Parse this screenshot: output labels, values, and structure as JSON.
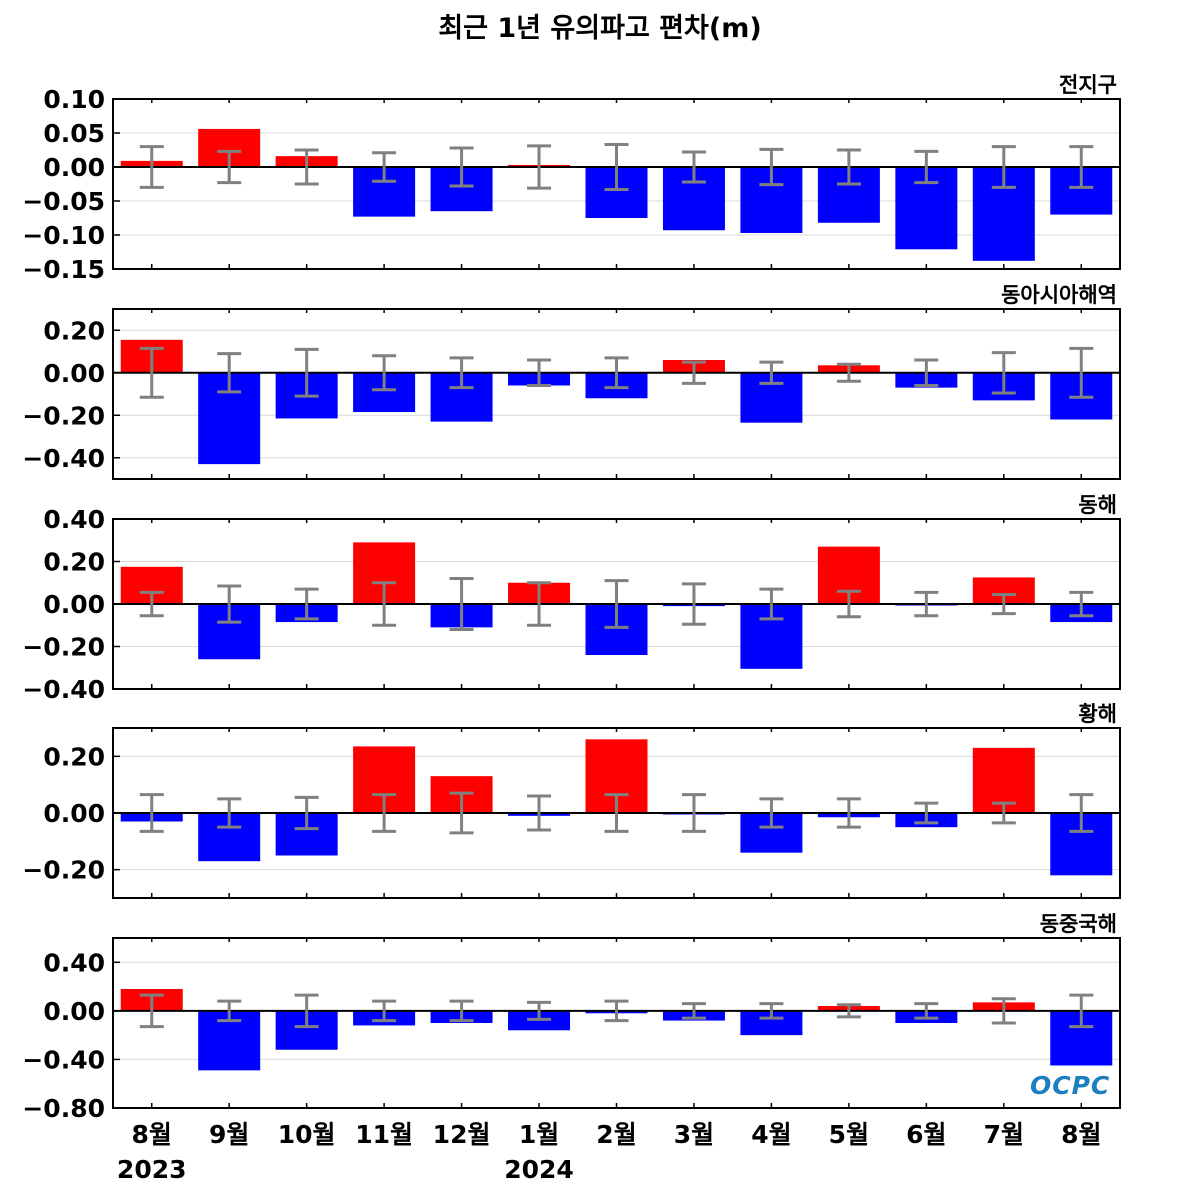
{
  "title": "최근 1년 유의파고 편차(m)",
  "logo_text": "OCPC",
  "colors": {
    "positive": "#ff0000",
    "negative": "#0000ff",
    "error_bar": "#808080",
    "grid": "#d9d9d9",
    "zero_line": "#000000"
  },
  "chart_data": [
    {
      "type": "bar",
      "region": "전지구",
      "ylim": [
        -0.15,
        0.1
      ],
      "yticks": [
        0.1,
        0.05,
        0.0,
        -0.05,
        -0.1,
        -0.15
      ],
      "yticklabels": [
        "0.10",
        "0.05",
        "0.00",
        "−0.05",
        "−0.10",
        "−0.15"
      ],
      "values": [
        0.009,
        0.056,
        0.016,
        -0.073,
        -0.065,
        0.003,
        -0.075,
        -0.093,
        -0.097,
        -0.082,
        -0.121,
        -0.138,
        -0.07
      ],
      "error": [
        0.03,
        0.023,
        0.025,
        0.021,
        0.028,
        0.031,
        0.033,
        0.022,
        0.026,
        0.025,
        0.023,
        0.03,
        0.03
      ]
    },
    {
      "type": "bar",
      "region": "동아시아해역",
      "ylim": [
        -0.5,
        0.3
      ],
      "yticks": [
        0.2,
        0.0,
        -0.2,
        -0.4
      ],
      "yticklabels": [
        "0.20",
        "0.00",
        "−0.20",
        "−0.40"
      ],
      "values": [
        0.155,
        -0.43,
        -0.215,
        -0.185,
        -0.23,
        -0.06,
        -0.12,
        0.06,
        -0.235,
        0.035,
        -0.07,
        -0.13,
        -0.22
      ],
      "error": [
        0.115,
        0.09,
        0.11,
        0.08,
        0.07,
        0.06,
        0.07,
        0.05,
        0.05,
        0.04,
        0.06,
        0.095,
        0.115
      ]
    },
    {
      "type": "bar",
      "region": "동해",
      "ylim": [
        -0.4,
        0.4
      ],
      "yticks": [
        0.4,
        0.2,
        0.0,
        -0.2,
        -0.4
      ],
      "yticklabels": [
        "0.40",
        "0.20",
        "0.00",
        "−0.20",
        "−0.40"
      ],
      "values": [
        0.175,
        -0.26,
        -0.085,
        0.29,
        -0.11,
        0.1,
        -0.24,
        -0.01,
        -0.305,
        0.27,
        -0.005,
        0.125,
        -0.085
      ],
      "error": [
        0.055,
        0.085,
        0.07,
        0.1,
        0.12,
        0.1,
        0.11,
        0.095,
        0.07,
        0.06,
        0.055,
        0.045,
        0.055
      ]
    },
    {
      "type": "bar",
      "region": "황해",
      "ylim": [
        -0.3,
        0.3
      ],
      "yticks": [
        0.2,
        0.0,
        -0.2
      ],
      "yticklabels": [
        "0.20",
        "0.00",
        "−0.20"
      ],
      "values": [
        -0.03,
        -0.17,
        -0.15,
        0.235,
        0.13,
        -0.01,
        0.26,
        -0.005,
        -0.14,
        -0.015,
        -0.05,
        0.23,
        -0.22
      ],
      "error": [
        0.065,
        0.05,
        0.055,
        0.065,
        0.07,
        0.06,
        0.065,
        0.065,
        0.05,
        0.05,
        0.035,
        0.035,
        0.065
      ]
    },
    {
      "type": "bar",
      "region": "동중국해",
      "ylim": [
        -0.8,
        0.6
      ],
      "yticks": [
        0.4,
        0.0,
        -0.4,
        -0.8
      ],
      "yticklabels": [
        "0.40",
        "0.00",
        "−0.40",
        "−0.80"
      ],
      "values": [
        0.18,
        -0.49,
        -0.32,
        -0.12,
        -0.1,
        -0.16,
        -0.02,
        -0.08,
        -0.2,
        0.04,
        -0.1,
        0.07,
        -0.45
      ],
      "error": [
        0.13,
        0.08,
        0.13,
        0.08,
        0.08,
        0.07,
        0.08,
        0.06,
        0.06,
        0.05,
        0.06,
        0.1,
        0.13
      ]
    }
  ],
  "categories": [
    "8월",
    "9월",
    "10월",
    "11월",
    "12월",
    "1월",
    "2월",
    "3월",
    "4월",
    "5월",
    "6월",
    "7월",
    "8월"
  ],
  "year_labels": [
    {
      "text": "2023",
      "index": 0
    },
    {
      "text": "2024",
      "index": 5
    }
  ]
}
